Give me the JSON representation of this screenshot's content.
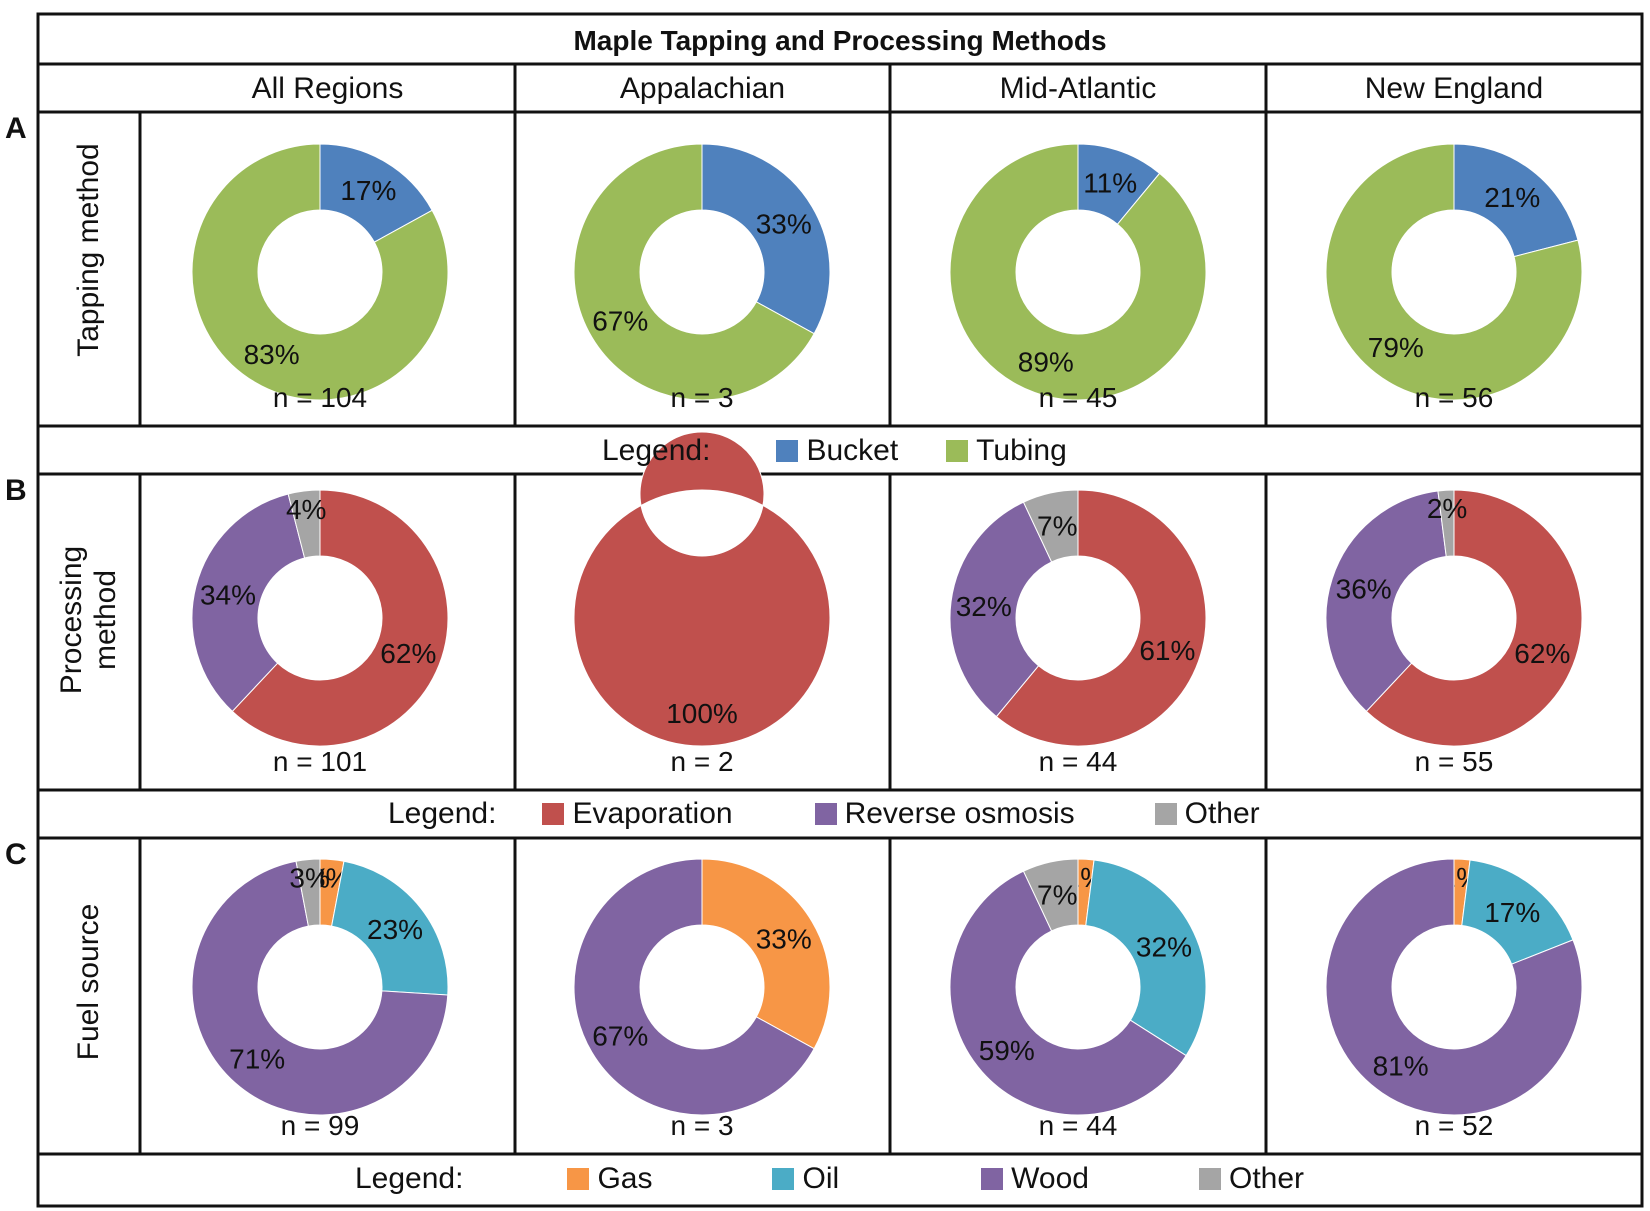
{
  "title": "Maple Tapping and Processing Methods",
  "panel_letters": [
    "A",
    "B",
    "C"
  ],
  "columns": [
    "All Regions",
    "Appalachian",
    "Mid-Atlantic",
    "New England"
  ],
  "colors": {
    "Bucket": "#4f81bd",
    "Tubing": "#9bbb59",
    "Evaporation": "#c0504d",
    "Reverse osmosis": "#8064a2",
    "Other": "#a5a5a5",
    "Gas": "#f79646",
    "Oil": "#4bacc6",
    "Wood": "#8064a2"
  },
  "rows": [
    {
      "label": "Tapping method",
      "legend_title": "Legend:",
      "legend": [
        "Bucket",
        "Tubing"
      ]
    },
    {
      "label_line1": "Processing",
      "label_line2": "method",
      "legend_title": "Legend:",
      "legend": [
        "Evaporation",
        "Reverse osmosis",
        "Other"
      ]
    },
    {
      "label": "Fuel source",
      "legend_title": "Legend:",
      "legend": [
        "Gas",
        "Oil",
        "Wood",
        "Other"
      ]
    }
  ],
  "chart_data": [
    {
      "type": "pie",
      "variant": "donut",
      "panel": "A",
      "row": "Tapping method",
      "column": "All Regions",
      "n": "n = 104",
      "slices": [
        {
          "label": "Bucket",
          "value": 17,
          "text": "17%"
        },
        {
          "label": "Tubing",
          "value": 83,
          "text": "83%"
        }
      ]
    },
    {
      "type": "pie",
      "variant": "donut",
      "panel": "A",
      "row": "Tapping method",
      "column": "Appalachian",
      "n": "n = 3",
      "slices": [
        {
          "label": "Bucket",
          "value": 33,
          "text": "33%"
        },
        {
          "label": "Tubing",
          "value": 67,
          "text": "67%"
        }
      ]
    },
    {
      "type": "pie",
      "variant": "donut",
      "panel": "A",
      "row": "Tapping method",
      "column": "Mid-Atlantic",
      "n": "n = 45",
      "slices": [
        {
          "label": "Bucket",
          "value": 11,
          "text": "11%"
        },
        {
          "label": "Tubing",
          "value": 89,
          "text": "89%"
        }
      ]
    },
    {
      "type": "pie",
      "variant": "donut",
      "panel": "A",
      "row": "Tapping method",
      "column": "New England",
      "n": "n = 56",
      "slices": [
        {
          "label": "Bucket",
          "value": 21,
          "text": "21%"
        },
        {
          "label": "Tubing",
          "value": 79,
          "text": "79%"
        }
      ]
    },
    {
      "type": "pie",
      "variant": "donut",
      "panel": "B",
      "row": "Processing method",
      "column": "All Regions",
      "n": "n = 101",
      "slices": [
        {
          "label": "Evaporation",
          "value": 62,
          "text": "62%"
        },
        {
          "label": "Reverse osmosis",
          "value": 34,
          "text": "34%"
        },
        {
          "label": "Other",
          "value": 4,
          "text": "4%"
        }
      ]
    },
    {
      "type": "pie",
      "variant": "donut",
      "panel": "B",
      "row": "Processing method",
      "column": "Appalachian",
      "n": "n = 2",
      "slices": [
        {
          "label": "Evaporation",
          "value": 100,
          "text": "100%"
        }
      ]
    },
    {
      "type": "pie",
      "variant": "donut",
      "panel": "B",
      "row": "Processing method",
      "column": "Mid-Atlantic",
      "n": "n = 44",
      "slices": [
        {
          "label": "Evaporation",
          "value": 61,
          "text": "61%"
        },
        {
          "label": "Reverse osmosis",
          "value": 32,
          "text": "32%"
        },
        {
          "label": "Other",
          "value": 7,
          "text": "7%"
        }
      ]
    },
    {
      "type": "pie",
      "variant": "donut",
      "panel": "B",
      "row": "Processing method",
      "column": "New England",
      "n": "n = 55",
      "slices": [
        {
          "label": "Evaporation",
          "value": 62,
          "text": "62%"
        },
        {
          "label": "Reverse osmosis",
          "value": 36,
          "text": "36%"
        },
        {
          "label": "Other",
          "value": 2,
          "text": "2%"
        }
      ]
    },
    {
      "type": "pie",
      "variant": "donut",
      "panel": "C",
      "row": "Fuel source",
      "column": "All Regions",
      "n": "n = 99",
      "slices": [
        {
          "label": "Gas",
          "value": 3,
          "text": "3%"
        },
        {
          "label": "Oil",
          "value": 23,
          "text": "23%"
        },
        {
          "label": "Wood",
          "value": 71,
          "text": "71%"
        },
        {
          "label": "Other",
          "value": 3,
          "text": "3%"
        }
      ]
    },
    {
      "type": "pie",
      "variant": "donut",
      "panel": "C",
      "row": "Fuel source",
      "column": "Appalachian",
      "n": "n = 3",
      "slices": [
        {
          "label": "Gas",
          "value": 33,
          "text": "33%"
        },
        {
          "label": "Wood",
          "value": 67,
          "text": "67%"
        }
      ]
    },
    {
      "type": "pie",
      "variant": "donut",
      "panel": "C",
      "row": "Fuel source",
      "column": "Mid-Atlantic",
      "n": "n = 44",
      "slices": [
        {
          "label": "Gas",
          "value": 2,
          "text": "2%"
        },
        {
          "label": "Oil",
          "value": 32,
          "text": "32%"
        },
        {
          "label": "Wood",
          "value": 59,
          "text": "59%"
        },
        {
          "label": "Other",
          "value": 7,
          "text": "7%"
        }
      ]
    },
    {
      "type": "pie",
      "variant": "donut",
      "panel": "C",
      "row": "Fuel source",
      "column": "New England",
      "n": "n = 52",
      "slices": [
        {
          "label": "Gas",
          "value": 2,
          "text": "2%"
        },
        {
          "label": "Oil",
          "value": 17,
          "text": "17%"
        },
        {
          "label": "Wood",
          "value": 81,
          "text": "81%"
        }
      ]
    }
  ]
}
